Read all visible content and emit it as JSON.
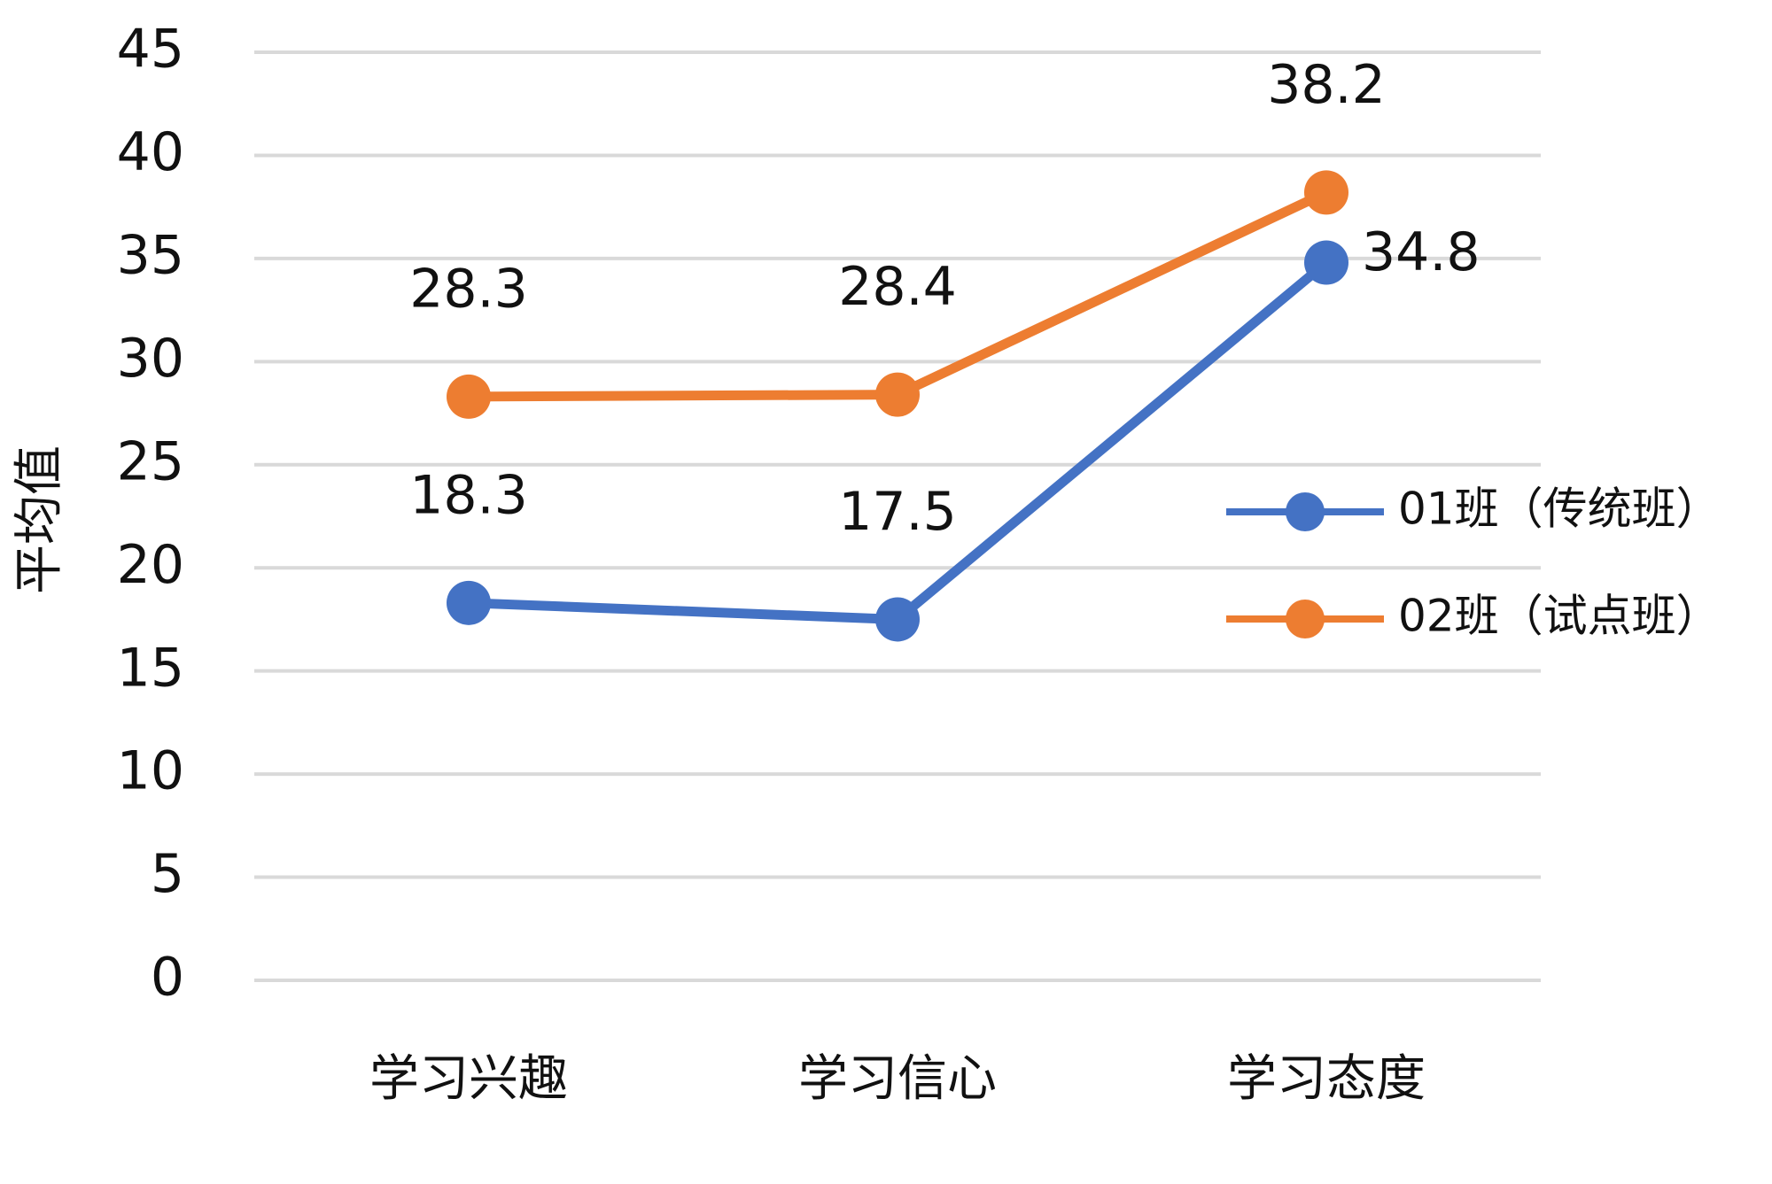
{
  "chart_data": {
    "type": "line",
    "y_label": "平均值",
    "categories": [
      "学习兴趣",
      "学习信心",
      "学习态度"
    ],
    "series": [
      {
        "name": "01班（传统班）",
        "color": "#4472c4",
        "values": [
          18.3,
          17.5,
          34.8
        ]
      },
      {
        "name": "02班（试点班）",
        "color": "#ed7d31",
        "values": [
          28.3,
          28.4,
          38.2
        ]
      }
    ],
    "ylim": [
      0,
      45
    ],
    "yticks": [
      0,
      5,
      10,
      15,
      20,
      25,
      30,
      35,
      40,
      45
    ],
    "grid": true,
    "legend": "right"
  }
}
